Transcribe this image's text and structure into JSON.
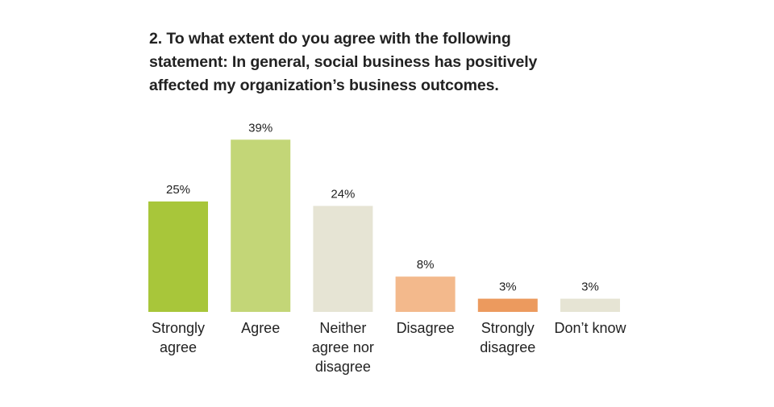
{
  "chart_data": {
    "type": "bar",
    "title_lines": [
      "2. To what extent do you agree with the following",
      "statement: In general, social business has positively",
      "affected my organization’s business outcomes."
    ],
    "categories": [
      [
        "Strongly",
        "agree"
      ],
      [
        "Agree"
      ],
      [
        "Neither",
        "agree nor",
        "disagree"
      ],
      [
        "Disagree"
      ],
      [
        "Strongly",
        "disagree"
      ],
      [
        "Don’t know"
      ]
    ],
    "values": [
      25,
      39,
      24,
      8,
      3,
      3
    ],
    "value_labels": [
      "25%",
      "39%",
      "24%",
      "8%",
      "3%",
      "3%"
    ],
    "colors": [
      "#a8c63a",
      "#c3d677",
      "#e6e4d4",
      "#f3b98c",
      "#ec9a5e",
      "#e6e4d4"
    ],
    "unit": "%",
    "xlabel": "",
    "ylabel": ""
  }
}
